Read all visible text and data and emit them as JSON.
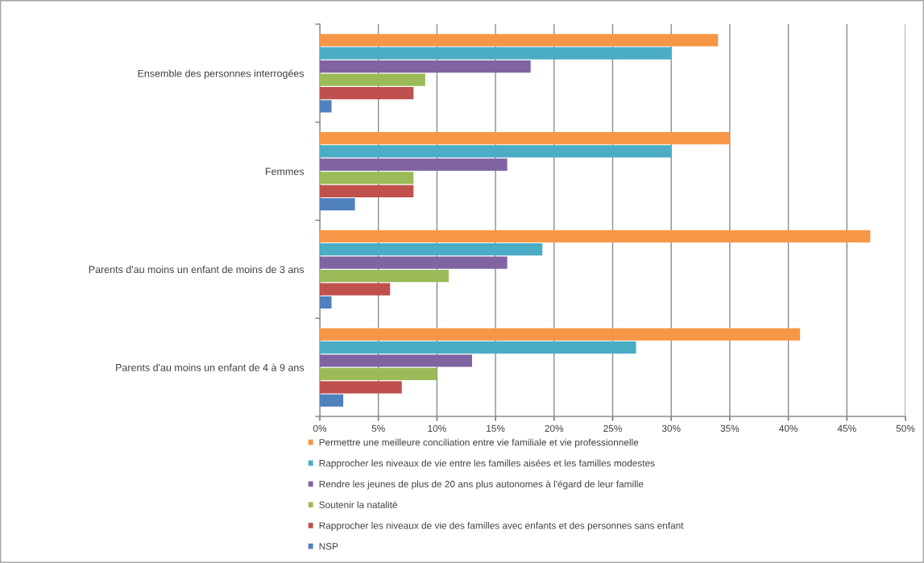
{
  "chart_data": {
    "type": "bar",
    "orientation": "horizontal",
    "categories": [
      "Ensemble des personnes interrogées",
      "Femmes",
      "Parents d'au moins un enfant de moins de 3 ans",
      "Parents d'au moins un enfant de 4 à 9 ans"
    ],
    "series": [
      {
        "name": "Permettre une meilleure conciliation entre vie familiale et vie professionnelle",
        "color": "#f79646",
        "values": [
          34,
          35,
          47,
          41
        ]
      },
      {
        "name": "Rapprocher les niveaux de vie entre les familles aisées et les familles modestes",
        "color": "#4bacc6",
        "values": [
          30,
          30,
          19,
          27
        ]
      },
      {
        "name": "Rendre les jeunes de plus de 20 ans plus autonomes à l'égard de leur famille",
        "color": "#8064a2",
        "values": [
          18,
          16,
          16,
          13
        ]
      },
      {
        "name": "Soutenir la natalité",
        "color": "#9bbb59",
        "values": [
          9,
          8,
          11,
          10
        ]
      },
      {
        "name": "Rapprocher les niveaux de vie des familles avec enfants et des personnes sans enfant",
        "color": "#c0504d",
        "values": [
          8,
          8,
          6,
          7
        ]
      },
      {
        "name": "NSP",
        "color": "#4f81bd",
        "values": [
          1,
          3,
          1,
          2
        ]
      }
    ],
    "xlim": [
      0,
      50
    ],
    "xticks": [
      {
        "value": 0,
        "label": "0%"
      },
      {
        "value": 5,
        "label": "5%"
      },
      {
        "value": 10,
        "label": "10%"
      },
      {
        "value": 15,
        "label": "15%"
      },
      {
        "value": 20,
        "label": "20%"
      },
      {
        "value": 25,
        "label": "25%"
      },
      {
        "value": 30,
        "label": "30%"
      },
      {
        "value": 35,
        "label": "35%"
      },
      {
        "value": 40,
        "label": "40%"
      },
      {
        "value": 45,
        "label": "45%"
      },
      {
        "value": 50,
        "label": "50%"
      }
    ],
    "grid": "x",
    "legend": "bottom"
  }
}
